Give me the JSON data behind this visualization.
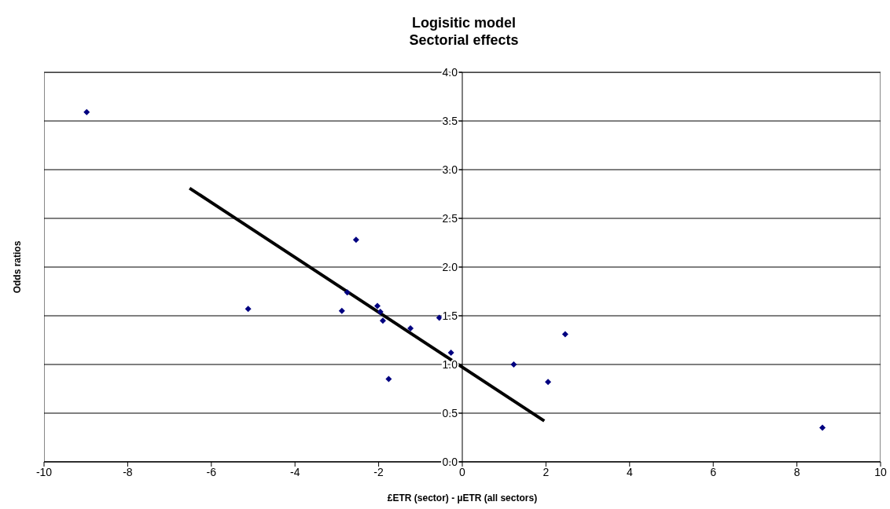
{
  "chart_data": {
    "type": "scatter",
    "title": "Logisitic model\nSectorial effects",
    "xlabel": "£ETR (sector) - µETR (all sectors)",
    "ylabel": "Odds ratios",
    "xlim": [
      -10,
      10
    ],
    "xticks": [
      -10,
      -8,
      -6,
      -4,
      -2,
      0,
      2,
      4,
      6,
      8,
      10
    ],
    "ylim": [
      0,
      4
    ],
    "yticks": [
      {
        "value": 0,
        "label": "0.0"
      },
      {
        "value": 0.5,
        "label": "0.5"
      },
      {
        "value": 1,
        "label": "1.0"
      },
      {
        "value": 1.5,
        "label": "1.5"
      },
      {
        "value": 2,
        "label": "2.0"
      },
      {
        "value": 2.5,
        "label": "2.5"
      },
      {
        "value": 3,
        "label": "3.0"
      },
      {
        "value": 3.5,
        "label": "3.5"
      },
      {
        "value": 4,
        "label": "4.0"
      }
    ],
    "grid": "y",
    "legend": false,
    "marker": "diamond",
    "series": [
      {
        "color": "#000080",
        "x": [
          -8.98,
          -5.12,
          -2.88,
          -2.75,
          -2.54,
          -2.03,
          -1.96,
          -1.9,
          -1.76,
          -1.24,
          -0.55,
          -0.27,
          1.23,
          2.05,
          2.46,
          8.61
        ],
        "values": [
          3.59,
          1.57,
          1.55,
          1.74,
          2.28,
          1.6,
          1.54,
          1.45,
          0.85,
          1.37,
          1.48,
          1.12,
          1.0,
          0.82,
          1.31,
          0.35
        ]
      },
      {
        "type": "line",
        "color": "#000000",
        "marker": "none",
        "line_style": "solid",
        "x": [
          -6.52,
          1.96
        ],
        "values": [
          2.81,
          0.42
        ]
      }
    ]
  }
}
